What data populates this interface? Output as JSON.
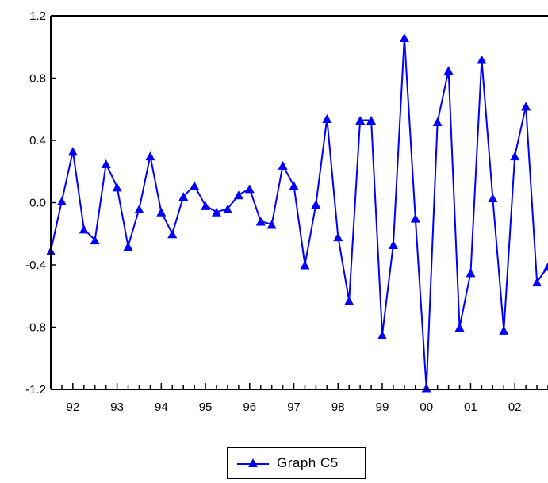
{
  "chart_data": {
    "type": "line",
    "title": "",
    "xlabel": "",
    "ylabel": "",
    "ylim": [
      -1.2,
      1.2
    ],
    "y_ticks": [
      1.2,
      0.8,
      0.4,
      0.0,
      -0.4,
      -0.8,
      -1.2
    ],
    "y_tick_labels": [
      "1.2",
      "0.8",
      "0.4",
      "0.0",
      "-0.4",
      "-0.8",
      "-1.2"
    ],
    "xlim": [
      1991.5,
      2002.75
    ],
    "x_tick_labels": [
      "92",
      "93",
      "94",
      "95",
      "96",
      "97",
      "98",
      "99",
      "00",
      "01",
      "02"
    ],
    "grid": false,
    "legend_position": "bottom-center",
    "series": [
      {
        "name": "Graph C5",
        "color": "#0000ff",
        "marker": "triangle",
        "x": [
          1991.5,
          1991.75,
          1992.0,
          1992.25,
          1992.5,
          1992.75,
          1993.0,
          1993.25,
          1993.5,
          1993.75,
          1994.0,
          1994.25,
          1994.5,
          1994.75,
          1995.0,
          1995.25,
          1995.5,
          1995.75,
          1996.0,
          1996.25,
          1996.5,
          1996.75,
          1997.0,
          1997.25,
          1997.5,
          1997.75,
          1998.0,
          1998.25,
          1998.5,
          1998.75,
          1999.0,
          1999.25,
          1999.5,
          1999.75,
          2000.0,
          2000.25,
          2000.5,
          2000.75,
          2001.0,
          2001.25,
          2001.5,
          2001.75,
          2002.0,
          2002.25,
          2002.5,
          2002.75
        ],
        "values": [
          -0.31,
          0.01,
          0.33,
          -0.17,
          -0.24,
          0.25,
          0.1,
          -0.28,
          -0.04,
          0.3,
          -0.06,
          -0.2,
          0.04,
          0.11,
          -0.02,
          -0.06,
          -0.04,
          0.05,
          0.09,
          -0.12,
          -0.14,
          0.24,
          0.11,
          -0.4,
          -0.01,
          0.54,
          -0.22,
          -0.63,
          0.53,
          0.53,
          -0.85,
          -0.27,
          1.06,
          -0.1,
          -1.19,
          0.52,
          0.85,
          -0.8,
          -0.45,
          0.92,
          0.03,
          -0.82,
          0.3,
          0.62,
          -0.51,
          -0.41
        ]
      }
    ]
  },
  "legend": {
    "label": "Graph C5"
  }
}
